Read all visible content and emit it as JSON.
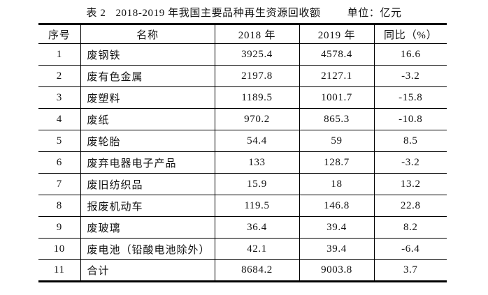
{
  "caption": {
    "label": "表 2",
    "title": "2018-2019 年我国主要品种再生资源回收额",
    "unit": "单位：亿元"
  },
  "table": {
    "headers": [
      "序号",
      "名称",
      "2018 年",
      "2019 年",
      "同比（%）"
    ],
    "rows": [
      [
        "1",
        "废钢铁",
        "3925.4",
        "4578.4",
        "16.6"
      ],
      [
        "2",
        "废有色金属",
        "2197.8",
        "2127.1",
        "-3.2"
      ],
      [
        "3",
        "废塑料",
        "1189.5",
        "1001.7",
        "-15.8"
      ],
      [
        "4",
        "废纸",
        "970.2",
        "865.3",
        "-10.8"
      ],
      [
        "5",
        "废轮胎",
        "54.4",
        "59",
        "8.5"
      ],
      [
        "6",
        "废弃电器电子产品",
        "133",
        "128.7",
        "-3.2"
      ],
      [
        "7",
        "废旧纺织品",
        "15.9",
        "18",
        "13.2"
      ],
      [
        "8",
        "报废机动车",
        "119.5",
        "146.8",
        "22.8"
      ],
      [
        "9",
        "废玻璃",
        "36.4",
        "39.4",
        "8.2"
      ],
      [
        "10",
        "废电池（铅酸电池除外）",
        "42.1",
        "39.4",
        "-6.4"
      ],
      [
        "11",
        "合计",
        "8684.2",
        "9003.8",
        "3.7"
      ]
    ]
  },
  "colors": {
    "text": "#111111",
    "border": "#000000",
    "background": "#ffffff"
  }
}
